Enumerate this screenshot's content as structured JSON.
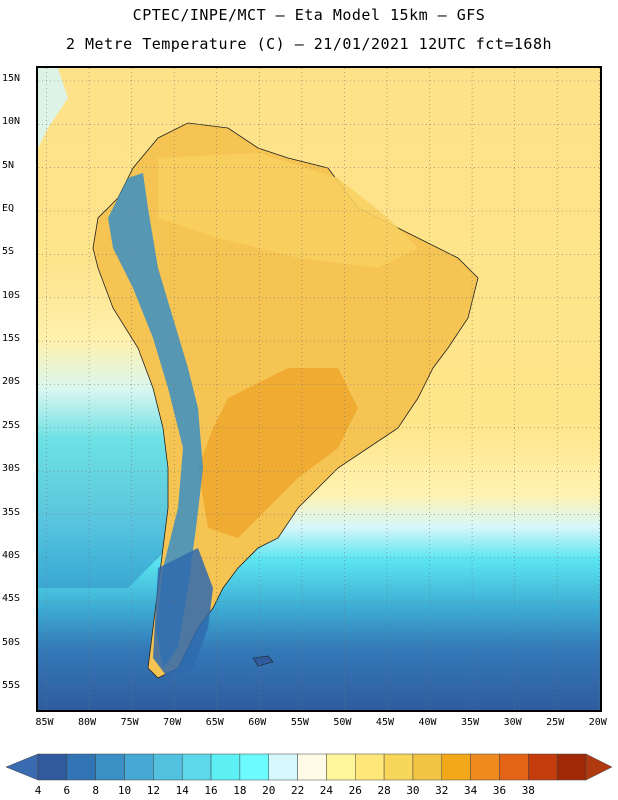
{
  "header": {
    "line1": "CPTEC/INPE/MCT –  Eta Model 15km – GFS",
    "line2": "2 Metre Temperature (C) – 21/01/2021 12UTC fct=168h"
  },
  "map": {
    "lat_labels": [
      "15N",
      "10N",
      "5N",
      "EQ",
      "5S",
      "10S",
      "15S",
      "20S",
      "25S",
      "30S",
      "35S",
      "40S",
      "45S",
      "50S",
      "55S"
    ],
    "lon_labels": [
      "85W",
      "80W",
      "75W",
      "70W",
      "65W",
      "60W",
      "55W",
      "50W",
      "45W",
      "40W",
      "35W",
      "30W",
      "25W",
      "20W"
    ],
    "lat_values": [
      15,
      10,
      5,
      0,
      -5,
      -10,
      -15,
      -20,
      -25,
      -30,
      -35,
      -40,
      -45,
      -50,
      -55
    ],
    "lon_values": [
      -85,
      -80,
      -75,
      -70,
      -65,
      -60,
      -55,
      -50,
      -45,
      -40,
      -35,
      -30,
      -25,
      -20
    ],
    "lat_range": [
      -58,
      16.5
    ],
    "lon_range": [
      -86,
      -19.5
    ]
  },
  "colorbar": {
    "labels": [
      "4",
      "6",
      "8",
      "10",
      "12",
      "14",
      "16",
      "18",
      "20",
      "22",
      "24",
      "26",
      "28",
      "30",
      "32",
      "34",
      "36",
      "38"
    ],
    "colors": [
      "#2f5a9e",
      "#3174b4",
      "#3a8fc4",
      "#45a9d4",
      "#52c1e0",
      "#5cd8ea",
      "#5cf0f4",
      "#6cfcff",
      "#d4f8fc",
      "#fffbe6",
      "#fff59a",
      "#ffe77a",
      "#f8d65a",
      "#f2c444",
      "#f2a818",
      "#ee8a1e",
      "#e46416",
      "#c43c0c",
      "#a02806"
    ],
    "under_color": "#3a6ab0",
    "over_color": "#b03a10"
  },
  "colors": {
    "ocean_warm": "#ffe07a",
    "ocean_cool": "#fff5a0",
    "land_hot": "#f2b23c",
    "andes": "#3a8fc4"
  }
}
